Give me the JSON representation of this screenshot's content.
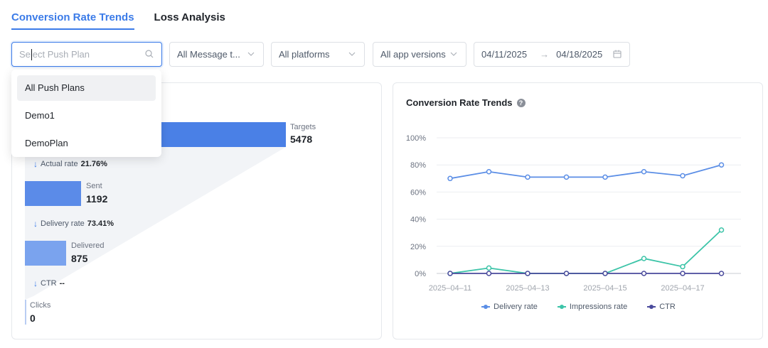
{
  "tabs": [
    {
      "label": "Conversion Rate Trends",
      "active": true
    },
    {
      "label": "Loss Analysis",
      "active": false
    }
  ],
  "filters": {
    "push_plan_placeholder": "Select Push Plan",
    "message_type": "All Message t...",
    "platforms": "All platforms",
    "app_versions": "All app versions",
    "date_start": "04/11/2025",
    "date_arrow": "→",
    "date_end": "04/18/2025"
  },
  "dropdown": {
    "items": [
      "All Push Plans",
      "Demo1",
      "DemoPlan"
    ],
    "selected_index": 0
  },
  "funnel": {
    "stages": [
      {
        "label": "Targets",
        "value": "5478"
      },
      {
        "label": "Sent",
        "value": "1192"
      },
      {
        "label": "Delivered",
        "value": "875"
      },
      {
        "label": "Clicks",
        "value": "0"
      }
    ],
    "rates": [
      {
        "label": "Actual rate",
        "value": "21.76%"
      },
      {
        "label": "Delivery rate",
        "value": "73.41%"
      },
      {
        "label": "CTR",
        "value": "--"
      }
    ]
  },
  "trend_chart": {
    "title": "Conversion Rate Trends",
    "help_glyph": "?"
  },
  "chart_data": {
    "type": "line",
    "x": [
      "2025-04-11",
      "2025-04-12",
      "2025-04-13",
      "2025-04-14",
      "2025-04-15",
      "2025-04-16",
      "2025-04-17",
      "2025-04-18"
    ],
    "x_tick_labels": [
      "2025–04–11",
      "2025–04–13",
      "2025–04–15",
      "2025–04–17"
    ],
    "y_tick_labels": [
      "0%",
      "20%",
      "40%",
      "60%",
      "80%",
      "100%"
    ],
    "ylim": [
      0,
      100
    ],
    "grid": true,
    "legend_position": "bottom",
    "series": [
      {
        "name": "Delivery rate",
        "color": "#5b8ee6",
        "values": [
          70,
          75,
          71,
          71,
          71,
          75,
          72,
          80
        ]
      },
      {
        "name": "Impressions rate",
        "color": "#3cc4a8",
        "values": [
          0,
          4,
          0,
          0,
          0,
          11,
          5,
          32
        ]
      },
      {
        "name": "CTR",
        "color": "#4a4a9c",
        "values": [
          0,
          0,
          0,
          0,
          0,
          0,
          0,
          0
        ]
      }
    ]
  },
  "colors": {
    "accent": "#3b7be8",
    "funnel_bar_1": "#4a80e6",
    "funnel_bar_2": "#5b8be8",
    "funnel_bar_3": "#7aa3ee"
  }
}
